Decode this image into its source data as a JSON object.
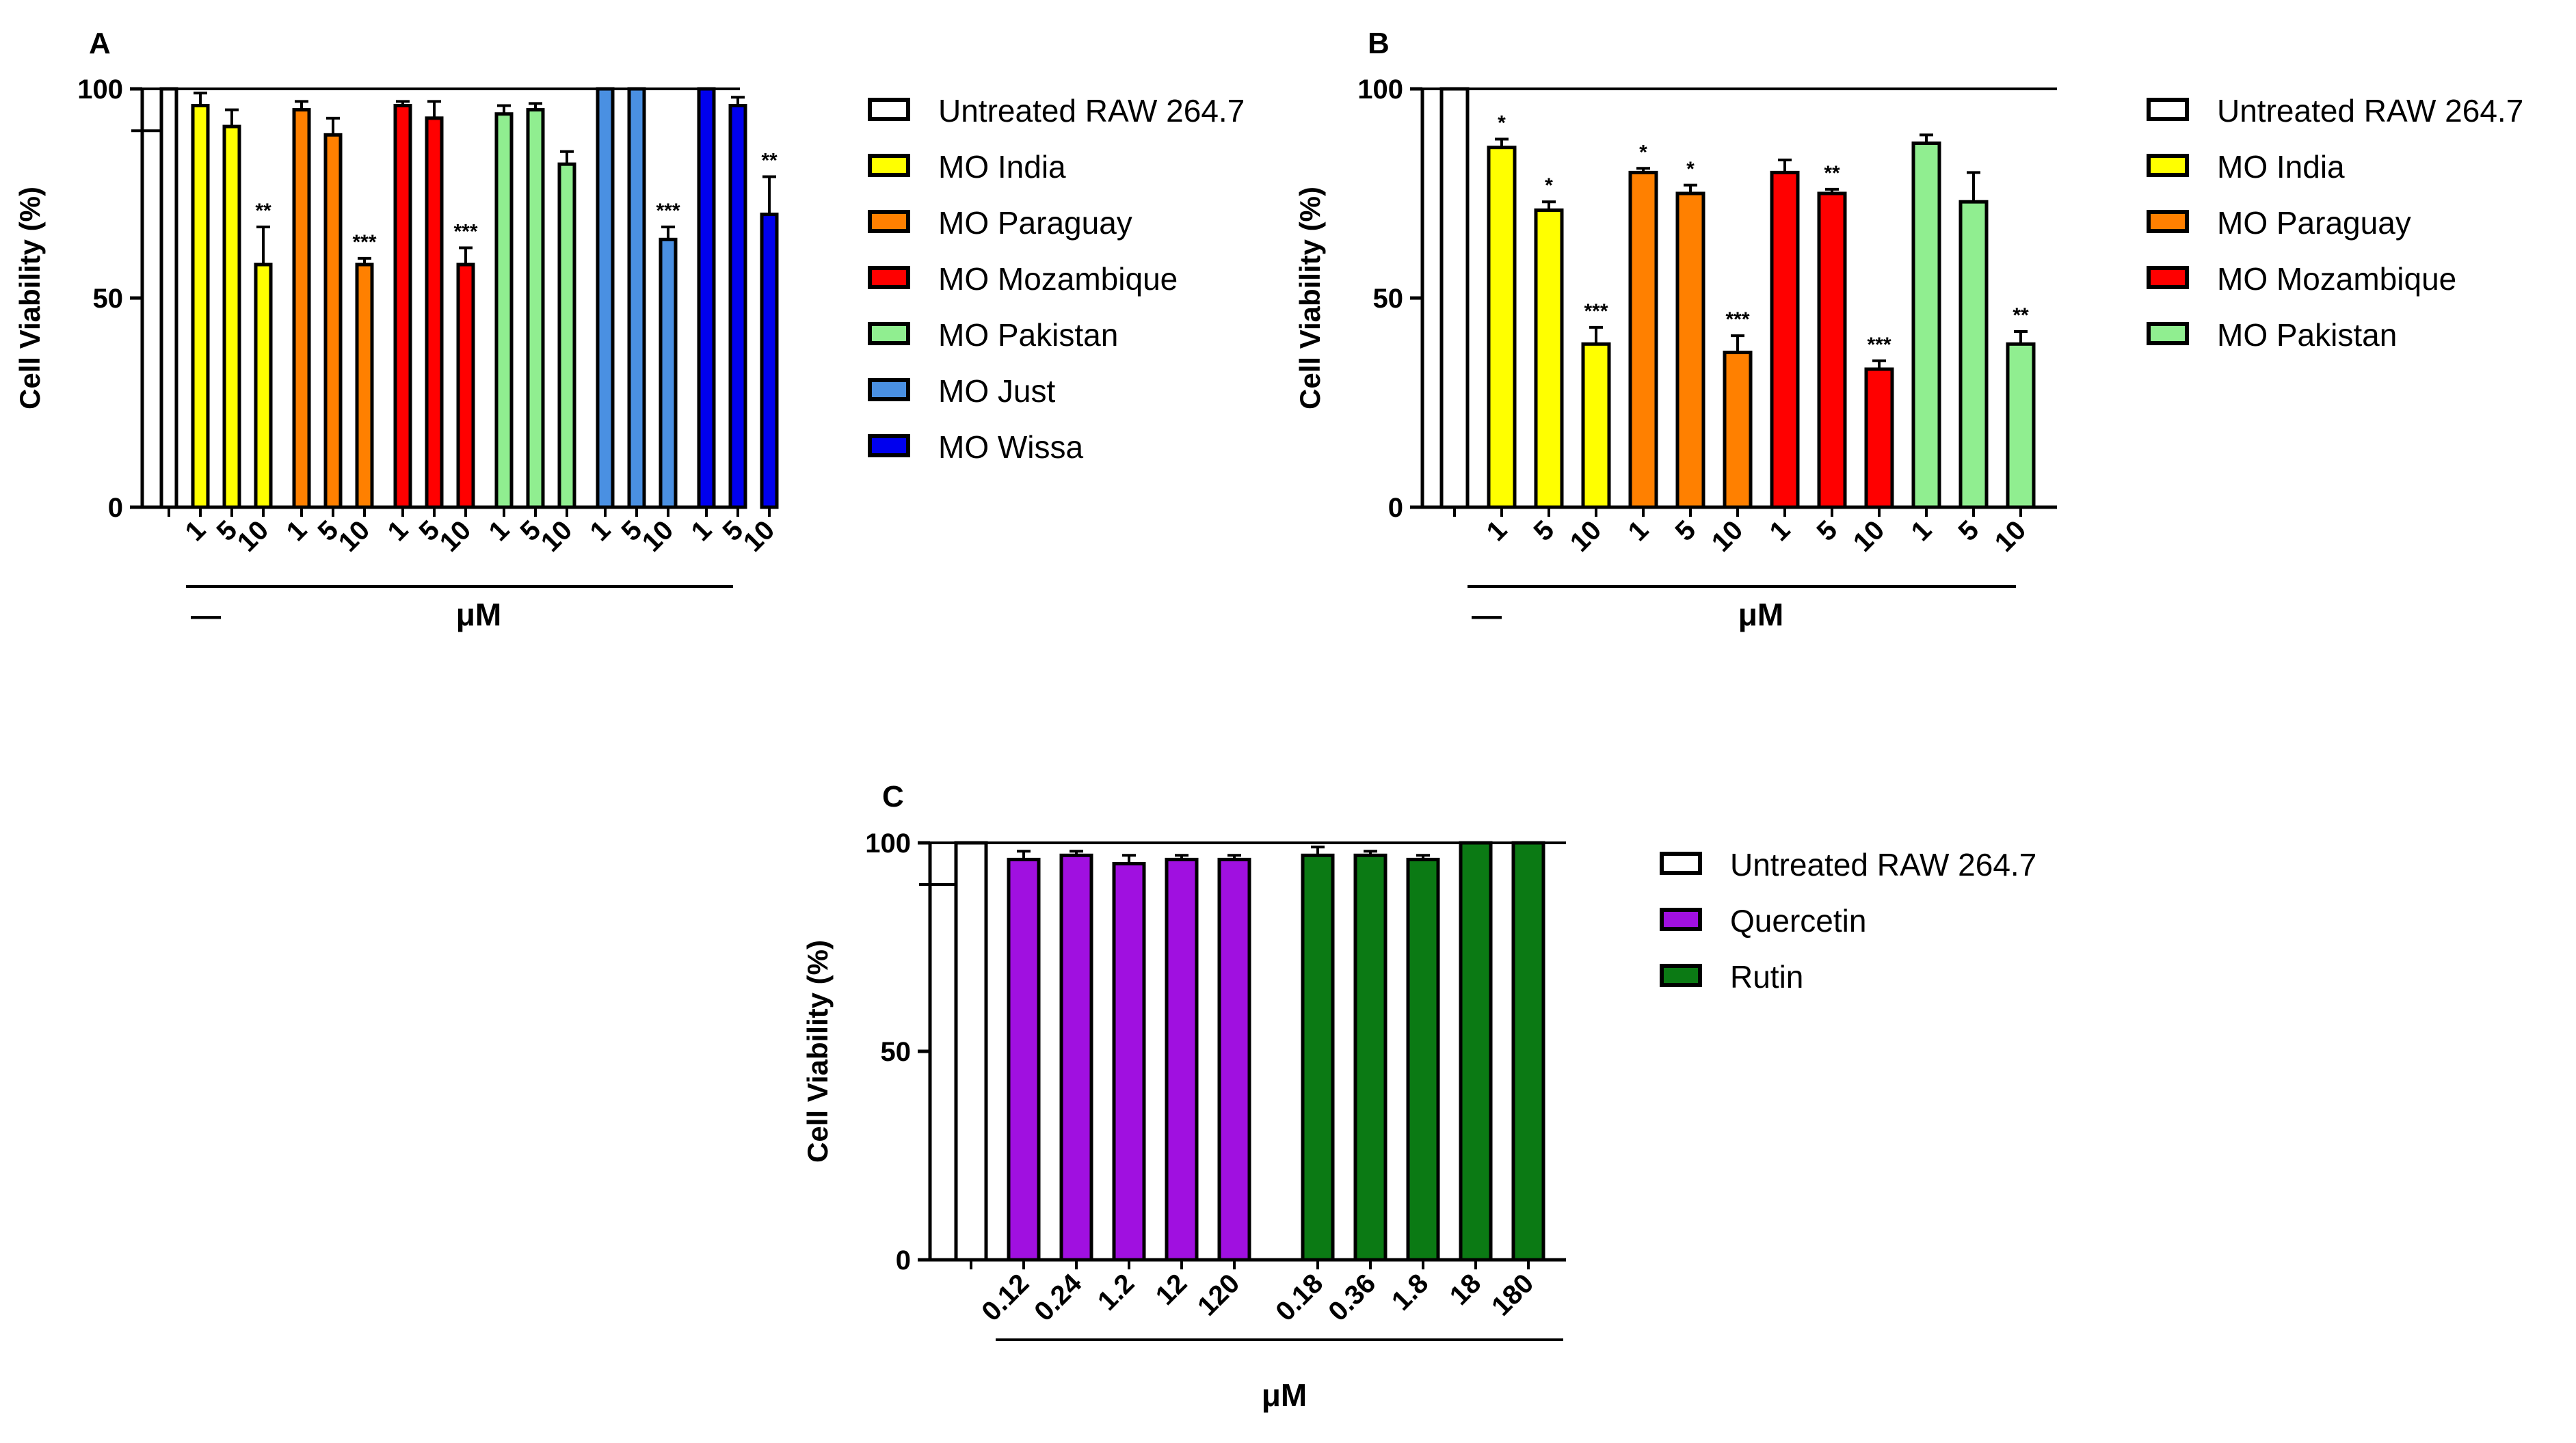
{
  "chart_data": [
    {
      "panel": "A",
      "type": "bar",
      "ylabel": "Cell Viability (%)",
      "xlabel": "μM",
      "control_label": "—",
      "ylim": [
        0,
        100
      ],
      "yticks": [
        0,
        50,
        100
      ],
      "control": {
        "name": "Untreated RAW 264.7",
        "value": 100,
        "error": 0
      },
      "groups": [
        {
          "name": "MO India",
          "color": "#FFFF00",
          "doses": [
            "1",
            "5",
            "10"
          ],
          "values": [
            96,
            91,
            58
          ],
          "errors": [
            3,
            4,
            9
          ],
          "sig": [
            "",
            "",
            "**"
          ]
        },
        {
          "name": "MO Paraguay",
          "color": "#FF8000",
          "doses": [
            "1",
            "5",
            "10"
          ],
          "values": [
            95,
            89,
            58
          ],
          "errors": [
            2,
            4,
            1.5
          ],
          "sig": [
            "",
            "",
            "***"
          ]
        },
        {
          "name": "MO Mozambique",
          "color": "#FF0000",
          "doses": [
            "1",
            "5",
            "10"
          ],
          "values": [
            96,
            93,
            58
          ],
          "errors": [
            1,
            4,
            4
          ],
          "sig": [
            "",
            "",
            "***"
          ]
        },
        {
          "name": "MO Pakistan",
          "color": "#90EE90",
          "doses": [
            "1",
            "5",
            "10"
          ],
          "values": [
            94,
            95,
            82
          ],
          "errors": [
            2,
            1.5,
            3
          ],
          "sig": [
            "",
            "",
            ""
          ]
        },
        {
          "name": "MO Just",
          "color": "#4A90E2",
          "doses": [
            "1",
            "5",
            "10"
          ],
          "values": [
            100,
            100,
            64
          ],
          "errors": [
            0,
            0,
            3
          ],
          "sig": [
            "",
            "",
            "***"
          ]
        },
        {
          "name": "MO Wissa",
          "color": "#0000EE",
          "doses": [
            "1",
            "5",
            "10"
          ],
          "values": [
            100,
            96,
            70
          ],
          "errors": [
            0,
            2,
            9
          ],
          "sig": [
            "",
            "",
            "**"
          ]
        }
      ]
    },
    {
      "panel": "B",
      "type": "bar",
      "ylabel": "Cell Viability (%)",
      "xlabel": "μM",
      "control_label": "—",
      "ylim": [
        0,
        100
      ],
      "yticks": [
        0,
        50,
        100
      ],
      "control": {
        "name": "Untreated RAW 264.7",
        "value": 100,
        "error": 0
      },
      "groups": [
        {
          "name": "MO India",
          "color": "#FFFF00",
          "doses": [
            "1",
            "5",
            "10"
          ],
          "values": [
            86,
            71,
            39
          ],
          "errors": [
            2,
            2,
            4
          ],
          "sig": [
            "*",
            "*",
            "***"
          ]
        },
        {
          "name": "MO Paraguay",
          "color": "#FF8000",
          "doses": [
            "1",
            "5",
            "10"
          ],
          "values": [
            80,
            75,
            37
          ],
          "errors": [
            1,
            2,
            4
          ],
          "sig": [
            "*",
            "*",
            "***"
          ]
        },
        {
          "name": "MO Mozambique",
          "color": "#FF0000",
          "doses": [
            "1",
            "5",
            "10"
          ],
          "values": [
            80,
            75,
            33
          ],
          "errors": [
            3,
            1,
            2
          ],
          "sig": [
            "",
            "**",
            "***"
          ]
        },
        {
          "name": "MO Pakistan",
          "color": "#90EE90",
          "doses": [
            "1",
            "5",
            "10"
          ],
          "values": [
            87,
            73,
            39
          ],
          "errors": [
            2,
            7,
            3
          ],
          "sig": [
            "",
            "",
            "**"
          ]
        }
      ]
    },
    {
      "panel": "C",
      "type": "bar",
      "ylabel": "Cell Viability (%)",
      "xlabel": "μM",
      "ylim": [
        0,
        100
      ],
      "yticks": [
        0,
        50,
        100
      ],
      "control": {
        "name": "Untreated RAW 264.7",
        "value": 100,
        "error": 0
      },
      "groups": [
        {
          "name": "Quercetin",
          "color": "#A010E0",
          "doses": [
            "0.12",
            "0.24",
            "1.2",
            "12",
            "120"
          ],
          "values": [
            96,
            97,
            95,
            96,
            96
          ],
          "errors": [
            2,
            1,
            2,
            1,
            1
          ],
          "sig": [
            "",
            "",
            "",
            "",
            ""
          ]
        },
        {
          "name": "Rutin",
          "color": "#0B7A14",
          "doses": [
            "0.18",
            "0.36",
            "1.8",
            "18",
            "180"
          ],
          "values": [
            97,
            97,
            96,
            100,
            100
          ],
          "errors": [
            2,
            1,
            1,
            0,
            0
          ],
          "sig": [
            "",
            "",
            "",
            "",
            ""
          ]
        }
      ]
    }
  ]
}
